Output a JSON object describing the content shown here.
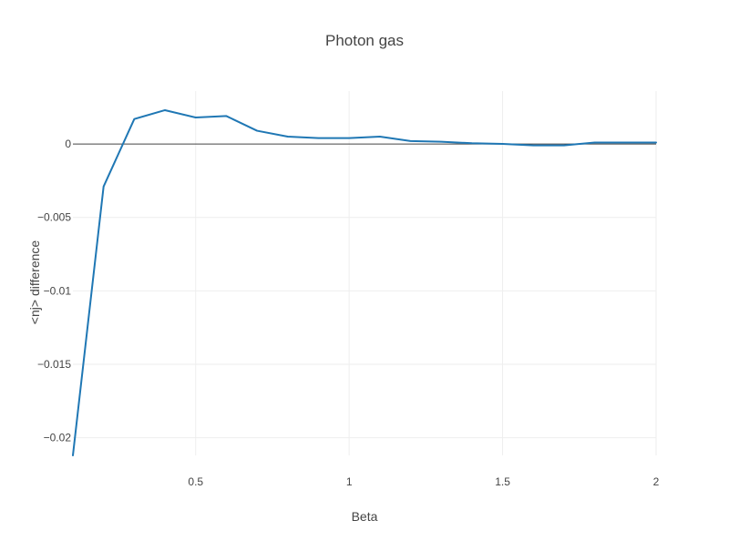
{
  "chart_data": {
    "type": "line",
    "title": "Photon gas",
    "xlabel": "Beta",
    "ylabel": "<nj> difference",
    "xlim": [
      0.1,
      2
    ],
    "ylim": [
      -0.0212,
      0.0036
    ],
    "x_ticks": [
      {
        "value": 0.5,
        "label": "0.5"
      },
      {
        "value": 1,
        "label": "1"
      },
      {
        "value": 1.5,
        "label": "1.5"
      },
      {
        "value": 2,
        "label": "2"
      }
    ],
    "y_ticks": [
      {
        "value": 0,
        "label": "0"
      },
      {
        "value": -0.005,
        "label": "−0.005"
      },
      {
        "value": -0.01,
        "label": "−0.01"
      },
      {
        "value": -0.015,
        "label": "−0.015"
      },
      {
        "value": -0.02,
        "label": "−0.02"
      }
    ],
    "grid": true,
    "zero_line": true,
    "series": [
      {
        "color": "#1f77b4",
        "x": [
          0.1,
          0.2,
          0.3,
          0.4,
          0.5,
          0.6,
          0.7,
          0.8,
          0.9,
          1.0,
          1.1,
          1.2,
          1.3,
          1.4,
          1.5,
          1.6,
          1.7,
          1.8,
          1.9,
          2.0
        ],
        "y": [
          -0.0212,
          -0.0029,
          0.0017,
          0.0023,
          0.0018,
          0.0019,
          0.0009,
          0.0005,
          0.0004,
          0.0004,
          0.0005,
          0.0002,
          0.00015,
          5e-05,
          0.0,
          -0.0001,
          -0.0001,
          0.0001,
          0.0001,
          0.0001
        ]
      }
    ]
  }
}
